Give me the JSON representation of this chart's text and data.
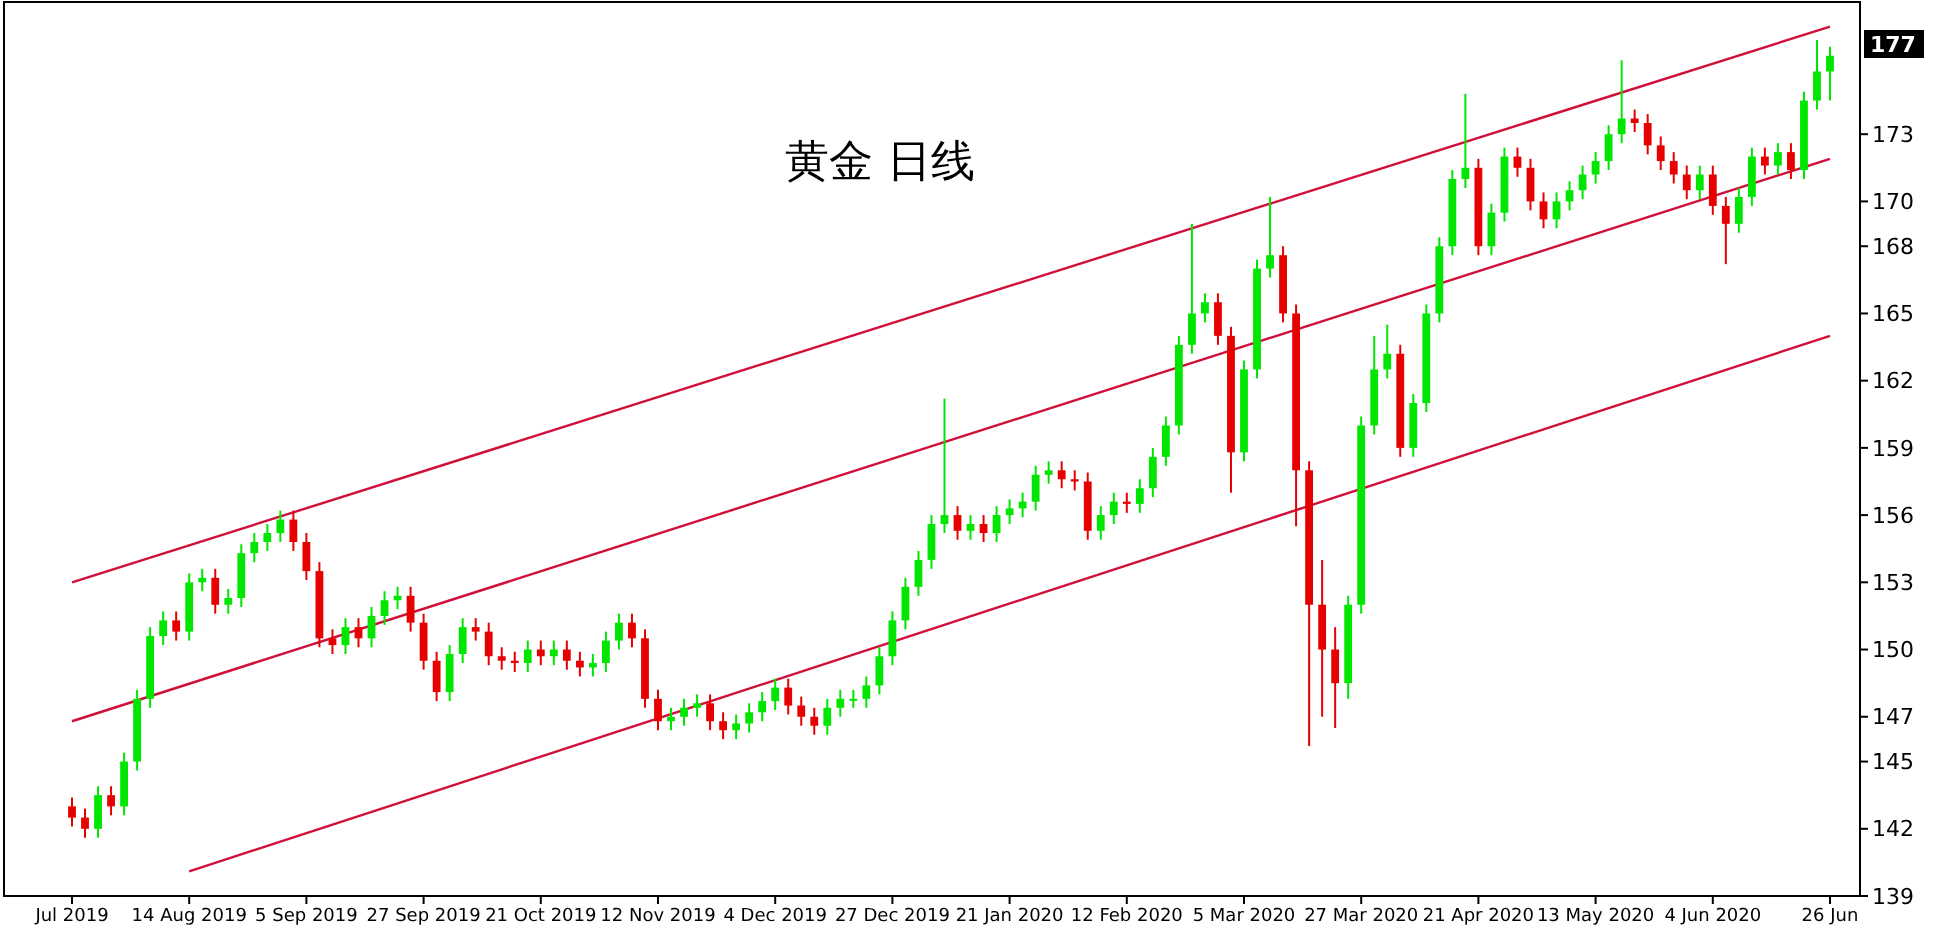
{
  "chart_data": {
    "type": "candlestick",
    "title": "黄金 日线",
    "categories": [
      "Jul 2019",
      null,
      null,
      null,
      null,
      null,
      null,
      null,
      null,
      "14 Aug 2019",
      null,
      null,
      null,
      null,
      null,
      null,
      null,
      null,
      "5 Sep 2019",
      null,
      null,
      null,
      null,
      null,
      null,
      null,
      null,
      "27 Sep 2019",
      null,
      null,
      null,
      null,
      null,
      null,
      null,
      null,
      "21 Oct 2019",
      null,
      null,
      null,
      null,
      null,
      null,
      null,
      null,
      "12 Nov 2019",
      null,
      null,
      null,
      null,
      null,
      null,
      null,
      null,
      "4 Dec 2019",
      null,
      null,
      null,
      null,
      null,
      null,
      null,
      null,
      "27 Dec 2019",
      null,
      null,
      null,
      null,
      null,
      null,
      null,
      null,
      "21 Jan 2020",
      null,
      null,
      null,
      null,
      null,
      null,
      null,
      null,
      "12 Feb 2020",
      null,
      null,
      null,
      null,
      null,
      null,
      null,
      null,
      "5 Mar 2020",
      null,
      null,
      null,
      null,
      null,
      null,
      null,
      null,
      "27 Mar 2020",
      null,
      null,
      null,
      null,
      null,
      null,
      null,
      null,
      "21 Apr 2020",
      null,
      null,
      null,
      null,
      null,
      null,
      null,
      null,
      "13 May 2020",
      null,
      null,
      null,
      null,
      null,
      null,
      null,
      null,
      "4 Jun 2020",
      null,
      null,
      null,
      null,
      null,
      null,
      null,
      null,
      "26 Jun"
    ],
    "ohlc": [
      [
        143.0,
        143.4,
        142.1,
        142.5
      ],
      [
        142.5,
        142.9,
        141.6,
        142.0
      ],
      [
        142.0,
        143.9,
        141.6,
        143.5
      ],
      [
        143.5,
        143.9,
        142.6,
        143.0
      ],
      [
        143.0,
        145.4,
        142.6,
        145.0
      ],
      [
        145.0,
        148.2,
        144.6,
        147.8
      ],
      [
        147.8,
        151.0,
        147.4,
        150.6
      ],
      [
        150.6,
        151.7,
        150.2,
        151.3
      ],
      [
        151.3,
        151.7,
        150.4,
        150.8
      ],
      [
        150.8,
        153.4,
        150.4,
        153.0
      ],
      [
        153.0,
        153.6,
        152.6,
        153.2
      ],
      [
        153.2,
        153.6,
        151.6,
        152.0
      ],
      [
        152.0,
        152.7,
        151.6,
        152.3
      ],
      [
        152.3,
        154.7,
        151.9,
        154.3
      ],
      [
        154.3,
        155.2,
        153.9,
        154.8
      ],
      [
        154.8,
        155.6,
        154.4,
        155.2
      ],
      [
        155.2,
        156.2,
        154.8,
        155.8
      ],
      [
        155.8,
        156.2,
        154.4,
        154.8
      ],
      [
        154.8,
        155.2,
        153.1,
        153.5
      ],
      [
        153.5,
        153.9,
        150.1,
        150.5
      ],
      [
        150.5,
        150.9,
        149.8,
        150.2
      ],
      [
        150.2,
        151.4,
        149.8,
        151.0
      ],
      [
        151.0,
        151.4,
        150.1,
        150.5
      ],
      [
        150.5,
        151.9,
        150.1,
        151.5
      ],
      [
        151.5,
        152.6,
        151.1,
        152.2
      ],
      [
        152.2,
        152.8,
        151.8,
        152.4
      ],
      [
        152.4,
        152.8,
        150.8,
        151.2
      ],
      [
        151.2,
        151.6,
        149.1,
        149.5
      ],
      [
        149.5,
        149.9,
        147.7,
        148.1
      ],
      [
        148.1,
        150.2,
        147.7,
        149.8
      ],
      [
        149.8,
        151.4,
        149.4,
        151.0
      ],
      [
        151.0,
        151.4,
        150.4,
        150.8
      ],
      [
        150.8,
        151.2,
        149.3,
        149.7
      ],
      [
        149.7,
        150.1,
        149.1,
        149.5
      ],
      [
        149.5,
        149.9,
        149.0,
        149.4
      ],
      [
        149.4,
        150.4,
        149.0,
        150.0
      ],
      [
        150.0,
        150.4,
        149.3,
        149.7
      ],
      [
        149.7,
        150.4,
        149.3,
        150.0
      ],
      [
        150.0,
        150.4,
        149.1,
        149.5
      ],
      [
        149.5,
        149.9,
        148.8,
        149.2
      ],
      [
        149.2,
        149.8,
        148.8,
        149.4
      ],
      [
        149.4,
        150.8,
        149.0,
        150.4
      ],
      [
        150.4,
        151.6,
        150.0,
        151.2
      ],
      [
        151.2,
        151.6,
        150.1,
        150.5
      ],
      [
        150.5,
        150.9,
        147.4,
        147.8
      ],
      [
        147.8,
        148.2,
        146.4,
        146.8
      ],
      [
        146.8,
        147.4,
        146.4,
        147.0
      ],
      [
        147.0,
        147.8,
        146.6,
        147.4
      ],
      [
        147.4,
        148.0,
        147.0,
        147.6
      ],
      [
        147.6,
        148.0,
        146.4,
        146.8
      ],
      [
        146.8,
        147.2,
        146.0,
        146.4
      ],
      [
        146.4,
        147.1,
        146.0,
        146.7
      ],
      [
        146.7,
        147.6,
        146.3,
        147.2
      ],
      [
        147.2,
        148.1,
        146.8,
        147.7
      ],
      [
        147.7,
        148.7,
        147.3,
        148.3
      ],
      [
        148.3,
        148.7,
        147.1,
        147.5
      ],
      [
        147.5,
        147.9,
        146.6,
        147.0
      ],
      [
        147.0,
        147.4,
        146.2,
        146.6
      ],
      [
        146.6,
        147.8,
        146.2,
        147.4
      ],
      [
        147.4,
        148.2,
        147.0,
        147.8
      ],
      [
        147.8,
        148.2,
        147.4,
        147.8
      ],
      [
        147.8,
        148.8,
        147.4,
        148.4
      ],
      [
        148.4,
        150.1,
        148.0,
        149.7
      ],
      [
        149.7,
        151.7,
        149.3,
        151.3
      ],
      [
        151.3,
        153.2,
        150.9,
        152.8
      ],
      [
        152.8,
        154.4,
        152.4,
        154.0
      ],
      [
        154.0,
        156.0,
        153.6,
        155.6
      ],
      [
        155.6,
        161.2,
        155.2,
        156.0
      ],
      [
        156.0,
        156.4,
        154.9,
        155.3
      ],
      [
        155.3,
        156.0,
        154.9,
        155.6
      ],
      [
        155.6,
        156.0,
        154.8,
        155.2
      ],
      [
        155.2,
        156.4,
        154.8,
        156.0
      ],
      [
        156.0,
        156.7,
        155.6,
        156.3
      ],
      [
        156.3,
        157.0,
        155.9,
        156.6
      ],
      [
        156.6,
        158.2,
        156.2,
        157.8
      ],
      [
        157.8,
        158.4,
        157.4,
        158.0
      ],
      [
        158.0,
        158.4,
        157.2,
        157.6
      ],
      [
        157.6,
        158.0,
        157.1,
        157.5
      ],
      [
        157.5,
        157.9,
        154.9,
        155.3
      ],
      [
        155.3,
        156.4,
        154.9,
        156.0
      ],
      [
        156.0,
        157.0,
        155.6,
        156.6
      ],
      [
        156.6,
        157.0,
        156.1,
        156.5
      ],
      [
        156.5,
        157.6,
        156.1,
        157.2
      ],
      [
        157.2,
        159.0,
        156.8,
        158.6
      ],
      [
        158.6,
        160.4,
        158.2,
        160.0
      ],
      [
        160.0,
        164.0,
        159.6,
        163.6
      ],
      [
        163.6,
        169.0,
        163.2,
        165.0
      ],
      [
        165.0,
        165.9,
        164.6,
        165.5
      ],
      [
        165.5,
        165.9,
        163.6,
        164.0
      ],
      [
        164.0,
        164.4,
        157.0,
        158.8
      ],
      [
        158.8,
        162.9,
        158.4,
        162.5
      ],
      [
        162.5,
        167.4,
        162.1,
        167.0
      ],
      [
        167.0,
        170.2,
        166.6,
        167.6
      ],
      [
        167.6,
        168.0,
        164.6,
        165.0
      ],
      [
        165.0,
        165.4,
        155.5,
        158.0
      ],
      [
        158.0,
        158.4,
        145.7,
        152.0
      ],
      [
        152.0,
        154.0,
        147.0,
        150.0
      ],
      [
        150.0,
        151.0,
        146.5,
        148.5
      ],
      [
        148.5,
        152.4,
        147.8,
        152.0
      ],
      [
        152.0,
        160.4,
        151.6,
        160.0
      ],
      [
        160.0,
        164.0,
        159.6,
        162.5
      ],
      [
        162.5,
        164.5,
        162.1,
        163.2
      ],
      [
        163.2,
        163.6,
        158.6,
        159.0
      ],
      [
        159.0,
        161.4,
        158.6,
        161.0
      ],
      [
        161.0,
        165.4,
        160.6,
        165.0
      ],
      [
        165.0,
        168.4,
        164.6,
        168.0
      ],
      [
        168.0,
        171.4,
        167.6,
        171.0
      ],
      [
        171.0,
        174.8,
        170.6,
        171.5
      ],
      [
        171.5,
        171.9,
        167.6,
        168.0
      ],
      [
        168.0,
        169.9,
        167.6,
        169.5
      ],
      [
        169.5,
        172.4,
        169.1,
        172.0
      ],
      [
        172.0,
        172.4,
        171.1,
        171.5
      ],
      [
        171.5,
        171.9,
        169.6,
        170.0
      ],
      [
        170.0,
        170.4,
        168.8,
        169.2
      ],
      [
        169.2,
        170.4,
        168.8,
        170.0
      ],
      [
        170.0,
        170.9,
        169.6,
        170.5
      ],
      [
        170.5,
        171.6,
        170.1,
        171.2
      ],
      [
        171.2,
        172.2,
        170.8,
        171.8
      ],
      [
        171.8,
        173.4,
        171.4,
        173.0
      ],
      [
        173.0,
        176.3,
        172.6,
        173.7
      ],
      [
        173.7,
        174.1,
        173.1,
        173.5
      ],
      [
        173.5,
        173.9,
        172.1,
        172.5
      ],
      [
        172.5,
        172.9,
        171.4,
        171.8
      ],
      [
        171.8,
        172.2,
        170.8,
        171.2
      ],
      [
        171.2,
        171.6,
        170.1,
        170.5
      ],
      [
        170.5,
        171.6,
        170.1,
        171.2
      ],
      [
        171.2,
        171.6,
        169.4,
        169.8
      ],
      [
        169.8,
        170.2,
        167.2,
        169.0
      ],
      [
        169.0,
        170.6,
        168.6,
        170.2
      ],
      [
        170.2,
        172.4,
        169.8,
        172.0
      ],
      [
        172.0,
        172.4,
        171.2,
        171.6
      ],
      [
        171.6,
        172.6,
        171.2,
        172.2
      ],
      [
        172.2,
        172.6,
        171.0,
        171.4
      ],
      [
        171.4,
        174.9,
        171.0,
        174.5
      ],
      [
        174.5,
        177.2,
        174.1,
        175.8
      ],
      [
        175.8,
        176.9,
        174.5,
        176.5
      ]
    ],
    "colors": [
      "#e60000",
      "#e60000",
      "#00e600",
      "#e60000",
      "#00e600",
      "#00e600",
      "#00e600",
      "#00e600",
      "#e60000",
      "#00e600",
      "#00e600",
      "#e60000",
      "#00e600",
      "#00e600",
      "#00e600",
      "#00e600",
      "#00e600",
      "#e60000",
      "#e60000",
      "#e60000",
      "#e60000",
      "#00e600",
      "#e60000",
      "#00e600",
      "#00e600",
      "#00e600",
      "#e60000",
      "#e60000",
      "#e60000",
      "#00e600",
      "#00e600",
      "#e60000",
      "#e60000",
      "#e60000",
      "#e60000",
      "#00e600",
      "#e60000",
      "#00e600",
      "#e60000",
      "#e60000",
      "#00e600",
      "#00e600",
      "#00e600",
      "#e60000",
      "#e60000",
      "#e60000",
      "#00e600",
      "#00e600",
      "#00e600",
      "#e60000",
      "#e60000",
      "#00e600",
      "#00e600",
      "#00e600",
      "#00e600",
      "#e60000",
      "#e60000",
      "#e60000",
      "#00e600",
      "#00e600",
      "#00e600",
      "#00e600",
      "#00e600",
      "#00e600",
      "#00e600",
      "#00e600",
      "#00e600",
      "#00e600",
      "#e60000",
      "#00e600",
      "#e60000",
      "#00e600",
      "#00e600",
      "#00e600",
      "#00e600",
      "#00e600",
      "#e60000",
      "#e60000",
      "#e60000",
      "#00e600",
      "#00e600",
      "#e60000",
      "#00e600",
      "#00e600",
      "#00e600",
      "#00e600",
      "#00e600",
      "#00e600",
      "#e60000",
      "#e60000",
      "#00e600",
      "#00e600",
      "#00e600",
      "#e60000",
      "#e60000",
      "#e60000",
      "#e60000",
      "#e60000",
      "#00e600",
      "#00e600",
      "#00e600",
      "#00e600",
      "#e60000",
      "#00e600",
      "#00e600",
      "#00e600",
      "#00e600",
      "#00e600",
      "#e60000",
      "#00e600",
      "#00e600",
      "#e60000",
      "#e60000",
      "#e60000",
      "#00e600",
      "#00e600",
      "#00e600",
      "#00e600",
      "#00e600",
      "#00e600",
      "#e60000",
      "#e60000",
      "#e60000",
      "#e60000",
      "#e60000",
      "#00e600",
      "#e60000",
      "#e60000",
      "#00e600",
      "#00e600",
      "#e60000",
      "#00e600",
      "#e60000",
      "#00e600",
      "#00e600",
      "#00e600"
    ],
    "series": [
      {
        "type": "line",
        "color": "#d0103a",
        "x": [
          "Jul 2019",
          "26 Jun"
        ],
        "values": [
          153.0,
          177.8
        ]
      },
      {
        "type": "line",
        "color": "#d0103a",
        "x": [
          "Jul 2019",
          "26 Jun"
        ],
        "values": [
          146.8,
          171.9
        ]
      },
      {
        "type": "line",
        "color": "#d0103a",
        "x": [
          "14 Aug 2019",
          "26 Jun"
        ],
        "values": [
          140.1,
          164.0
        ]
      }
    ],
    "ylim": [
      139.0,
      178.9
    ],
    "yticks": [
      139,
      142,
      145,
      147,
      150,
      153,
      156,
      159,
      162,
      165,
      168,
      170,
      173
    ],
    "annotations": [
      "177"
    ],
    "grid": false
  }
}
